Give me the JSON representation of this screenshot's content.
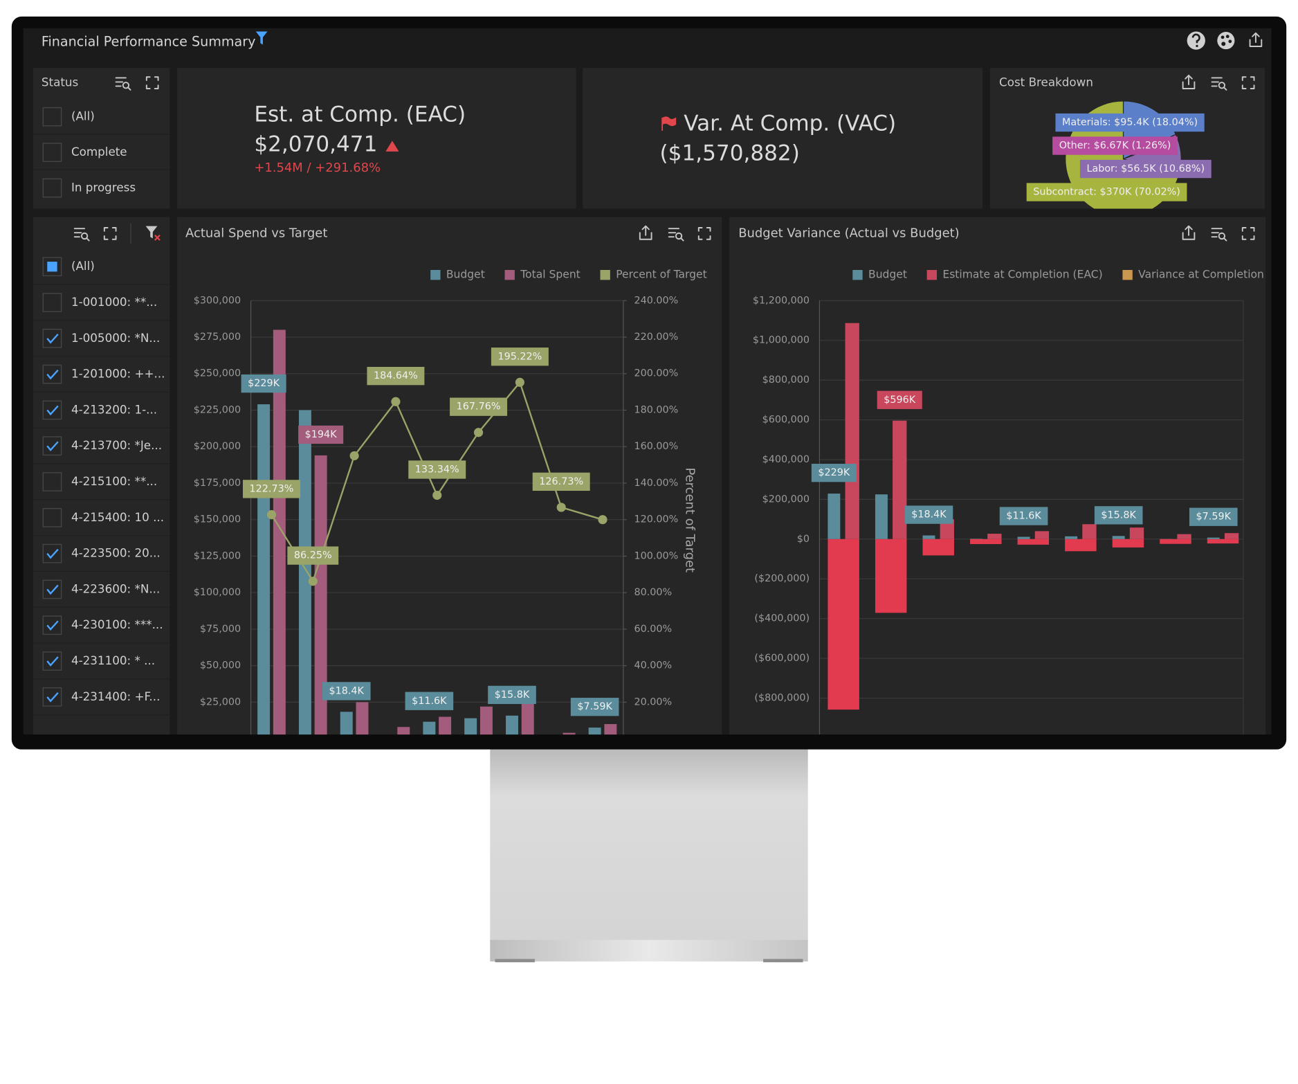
{
  "header": {
    "title": "Financial Performance Summary"
  },
  "status_filter": {
    "title": "Status",
    "options": [
      {
        "label": "(All)",
        "state": "unchecked"
      },
      {
        "label": "Complete",
        "state": "unchecked"
      },
      {
        "label": "In progress",
        "state": "unchecked"
      }
    ]
  },
  "kpis": {
    "eac": {
      "title": "Est. at Comp. (EAC)",
      "value": "$2,070,471",
      "change": "+1.54M / +291.68%"
    },
    "vac": {
      "title": "Var. At Comp. (VAC)",
      "value": "($1,570,882)"
    }
  },
  "item_filter": {
    "options": [
      {
        "label": "(All)",
        "state": "partial"
      },
      {
        "label": "1-001000: **...",
        "state": "unchecked"
      },
      {
        "label": "1-005000: *N...",
        "state": "checked"
      },
      {
        "label": "1-201000: ++...",
        "state": "checked"
      },
      {
        "label": "4-213200: 1-...",
        "state": "checked"
      },
      {
        "label": "4-213700: *Je...",
        "state": "checked"
      },
      {
        "label": "4-215100: **...",
        "state": "unchecked"
      },
      {
        "label": "4-215400: 10 ...",
        "state": "unchecked"
      },
      {
        "label": "4-223500: 20...",
        "state": "checked"
      },
      {
        "label": "4-223600: *N...",
        "state": "checked"
      },
      {
        "label": "4-230100: ***...",
        "state": "checked"
      },
      {
        "label": "4-231100: * ...",
        "state": "checked"
      },
      {
        "label": "4-231400: +F...",
        "state": "checked"
      }
    ]
  },
  "chart_data": [
    {
      "type": "pie",
      "title": "Cost Breakdown",
      "values": [
        18.04,
        1.26,
        10.68,
        70.02
      ],
      "value_labels": [
        "Materials: $95.4K (18.04%)",
        "Other: $6.67K (1.26%)",
        "Labor: $56.5K (10.68%)",
        "Subcontract: $370K (70.02%)"
      ],
      "colors": [
        "#5b7fc8",
        "#b64c9f",
        "#8c6cb0",
        "#a7b53f"
      ]
    },
    {
      "type": "combo",
      "title": "Actual Spend vs Target",
      "categories": [
        null,
        null,
        null,
        null,
        null,
        null,
        null,
        null,
        null
      ],
      "series": [
        {
          "name": "Budget",
          "kind": "bar",
          "color": "#5b8c9b",
          "values": [
            229000,
            225000,
            18400,
            2000,
            11600,
            14000,
            15800,
            1000,
            7590
          ],
          "value_labels": [
            "$229K",
            null,
            "$18.4K",
            null,
            "$11.6K",
            null,
            "$15.8K",
            null,
            "$7.59K"
          ]
        },
        {
          "name": "Total Spent",
          "kind": "bar",
          "color": "#a35c7c",
          "values": [
            280000,
            194000,
            25000,
            8000,
            15000,
            22000,
            25000,
            4000,
            10000
          ],
          "value_labels": [
            null,
            "$194K",
            null,
            null,
            null,
            null,
            null,
            null,
            null
          ]
        },
        {
          "name": "Percent of Target",
          "kind": "line",
          "axis": "y2",
          "color": "#9aa468",
          "values": [
            122.73,
            86.25,
            155,
            184.64,
            133.34,
            167.76,
            195.22,
            126.73,
            120
          ],
          "value_labels": [
            "122.73%",
            "86.25%",
            null,
            "184.64%",
            "133.34%",
            "167.76%",
            "195.22%",
            "126.73%",
            null
          ]
        }
      ],
      "ylim": [
        0,
        300000
      ],
      "yticks": [
        {
          "value": 25000,
          "label": "$25,000"
        },
        {
          "value": 50000,
          "label": "$50,000"
        },
        {
          "value": 75000,
          "label": "$75,000"
        },
        {
          "value": 100000,
          "label": "$100,000"
        },
        {
          "value": 125000,
          "label": "$125,000"
        },
        {
          "value": 150000,
          "label": "$150,000"
        },
        {
          "value": 175000,
          "label": "$175,000"
        },
        {
          "value": 200000,
          "label": "$200,000"
        },
        {
          "value": 225000,
          "label": "$225,000"
        },
        {
          "value": 250000,
          "label": "$250,000"
        },
        {
          "value": 275000,
          "label": "$275,000"
        },
        {
          "value": 300000,
          "label": "$300,000"
        }
      ],
      "y2lim": [
        0,
        240
      ],
      "y2ticks": [
        {
          "value": 20,
          "label": "20.00%"
        },
        {
          "value": 40,
          "label": "40.00%"
        },
        {
          "value": 60,
          "label": "60.00%"
        },
        {
          "value": 80,
          "label": "80.00%"
        },
        {
          "value": 100,
          "label": "100.00%"
        },
        {
          "value": 120,
          "label": "120.00%"
        },
        {
          "value": 140,
          "label": "140.00%"
        },
        {
          "value": 160,
          "label": "160.00%"
        },
        {
          "value": 180,
          "label": "180.00%"
        },
        {
          "value": 200,
          "label": "200.00%"
        },
        {
          "value": 220,
          "label": "220.00%"
        },
        {
          "value": 240,
          "label": "240.00%"
        }
      ],
      "y2label": "Percent of Target",
      "grid": true
    },
    {
      "type": "bar",
      "title": "Budget Variance (Actual vs Budget)",
      "categories": [
        null,
        null,
        null,
        null,
        null,
        null,
        null,
        null,
        null
      ],
      "series": [
        {
          "name": "Budget",
          "color": "#5b8c9b",
          "values": [
            229000,
            225000,
            18400,
            2000,
            11600,
            14000,
            15800,
            1000,
            7590
          ],
          "value_labels": [
            "$229K",
            null,
            "$18.4K",
            null,
            "$11.6K",
            null,
            "$15.8K",
            null,
            "$7.59K"
          ]
        },
        {
          "name": "Estimate at Completion (EAC)",
          "color": "#c8475c",
          "values": [
            1087000,
            596000,
            100000,
            27000,
            40000,
            75000,
            58000,
            25000,
            30000
          ],
          "value_labels": [
            null,
            "$596K",
            null,
            null,
            null,
            null,
            null,
            null,
            null
          ]
        },
        {
          "name": "Variance at Completion",
          "color": "#c9974f",
          "negative_color": "#e23b50",
          "values": [
            -858000,
            -371000,
            -82000,
            -25000,
            -28000,
            -61000,
            -42000,
            -24000,
            -22000
          ]
        }
      ],
      "ylim": [
        -1000000,
        1200000
      ],
      "yticks": [
        {
          "value": -800000,
          "label": "($800,000)"
        },
        {
          "value": -600000,
          "label": "($600,000)"
        },
        {
          "value": -400000,
          "label": "($400,000)"
        },
        {
          "value": -200000,
          "label": "($200,000)"
        },
        {
          "value": 0,
          "label": "$0"
        },
        {
          "value": 200000,
          "label": "$200,000"
        },
        {
          "value": 400000,
          "label": "$400,000"
        },
        {
          "value": 600000,
          "label": "$600,000"
        },
        {
          "value": 800000,
          "label": "$800,000"
        },
        {
          "value": 1000000,
          "label": "$1,000,000"
        },
        {
          "value": 1200000,
          "label": "$1,200,000"
        }
      ],
      "grid": true
    }
  ]
}
